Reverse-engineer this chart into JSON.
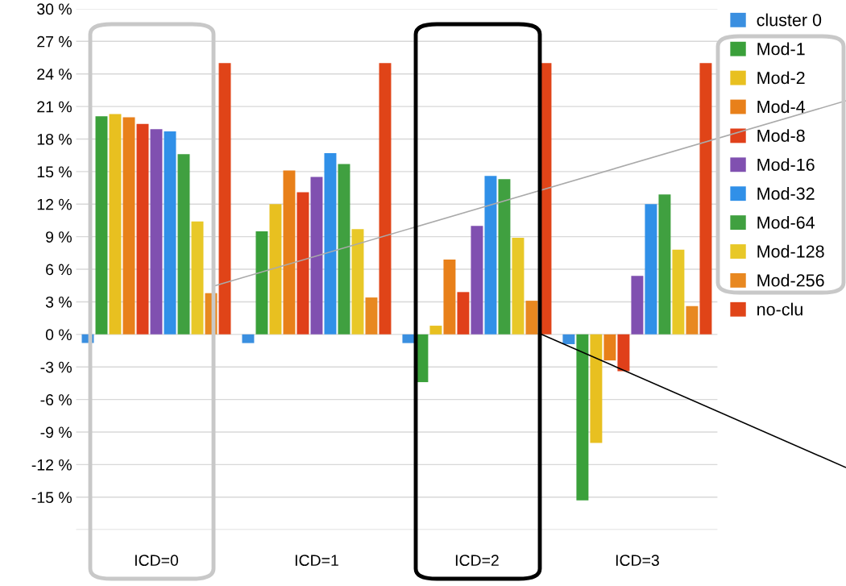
{
  "chart_data": {
    "type": "bar",
    "categories": [
      "ICD=0",
      "ICD=1",
      "ICD=2",
      "ICD=3"
    ],
    "series": [
      {
        "name": "cluster 0",
        "color": "#3a8fe0",
        "values": [
          -0.8,
          -0.8,
          -0.8,
          -0.9
        ]
      },
      {
        "name": "Mod-1",
        "color": "#3aa03a",
        "values": [
          20.1,
          9.5,
          -4.4,
          -15.3
        ]
      },
      {
        "name": "Mod-2",
        "color": "#e8c020",
        "values": [
          20.3,
          12.0,
          0.8,
          -10.0
        ]
      },
      {
        "name": "Mod-4",
        "color": "#e8801a",
        "values": [
          20.0,
          15.1,
          6.9,
          -2.4
        ]
      },
      {
        "name": "Mod-8",
        "color": "#e0401a",
        "values": [
          19.4,
          13.1,
          3.9,
          -3.4
        ]
      },
      {
        "name": "Mod-16",
        "color": "#8050b0",
        "values": [
          18.9,
          14.5,
          10.0,
          5.4
        ]
      },
      {
        "name": "Mod-32",
        "color": "#3090e8",
        "values": [
          18.7,
          16.7,
          14.6,
          12.0
        ]
      },
      {
        "name": "Mod-64",
        "color": "#40a040",
        "values": [
          16.6,
          15.7,
          14.3,
          12.9
        ]
      },
      {
        "name": "Mod-128",
        "color": "#e8c828",
        "values": [
          10.4,
          9.7,
          8.9,
          7.8
        ]
      },
      {
        "name": "Mod-256",
        "color": "#e88820",
        "values": [
          3.8,
          3.4,
          3.1,
          2.6
        ]
      },
      {
        "name": "no-clu",
        "color": "#e04418",
        "values": [
          25.0,
          25.0,
          25.0,
          25.0
        ]
      }
    ],
    "ylim": [
      -18,
      30
    ],
    "yticks": [
      {
        "value": -18,
        "label": null
      },
      {
        "value": -15,
        "label": "-15 %"
      },
      {
        "value": -12,
        "label": "-12 %"
      },
      {
        "value": -9,
        "label": "-9 %"
      },
      {
        "value": -6,
        "label": "-6 %"
      },
      {
        "value": -3,
        "label": "-3 %"
      },
      {
        "value": 0,
        "label": "0 %"
      },
      {
        "value": 3,
        "label": "3 %"
      },
      {
        "value": 6,
        "label": "6 %"
      },
      {
        "value": 9,
        "label": "9 %"
      },
      {
        "value": 12,
        "label": "12 %"
      },
      {
        "value": 15,
        "label": "15 %"
      },
      {
        "value": 18,
        "label": "18 %"
      },
      {
        "value": 21,
        "label": "21 %"
      },
      {
        "value": 24,
        "label": "24 %"
      },
      {
        "value": 27,
        "label": "27 %"
      },
      {
        "value": 30,
        "label": "30 %"
      }
    ],
    "grid": "y",
    "legend": "top right"
  }
}
